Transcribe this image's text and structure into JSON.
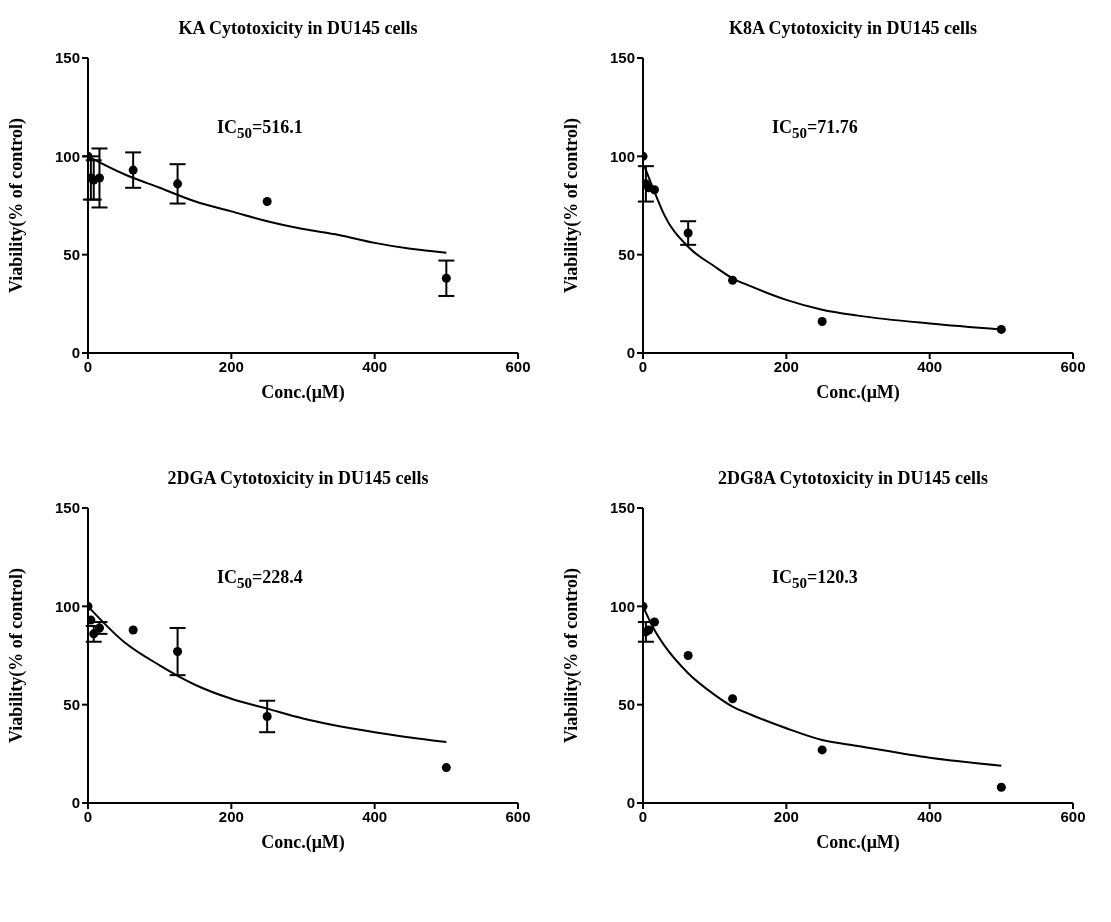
{
  "chart_data": [
    {
      "type": "scatter",
      "title": "KA Cytotoxicity in DU145 cells",
      "xlabel": "Conc.(μM)",
      "ylabel": "Viability(% of control)",
      "annotations": [
        "IC$_{50}$=516.1"
      ],
      "xlim": [
        0,
        600
      ],
      "xticks": [
        0,
        200,
        400,
        600
      ],
      "ylim": [
        0,
        150
      ],
      "yticks": [
        0,
        50,
        100,
        150
      ],
      "grid": false,
      "legend": false,
      "series": [
        {
          "color": "#000000",
          "marker": "circle",
          "x": [
            0,
            4,
            8,
            16,
            63,
            125,
            250,
            500
          ],
          "values": [
            100,
            89,
            88,
            89,
            93,
            86,
            77,
            38
          ],
          "errors": [
            null,
            11,
            10,
            15,
            9,
            10,
            null,
            9
          ]
        },
        {
          "type": "line",
          "marker": "none",
          "color": "#000000",
          "line_style": "solid",
          "x": [
            0,
            50,
            100,
            150,
            200,
            250,
            300,
            350,
            400,
            450,
            500
          ],
          "values": [
            100,
            91,
            84,
            77,
            72,
            67,
            63,
            60,
            56,
            53,
            51
          ]
        }
      ]
    },
    {
      "type": "scatter",
      "title": "K8A Cytotoxicity in DU145 cells",
      "xlabel": "Conc.(μM)",
      "ylabel": "Viability(% of control)",
      "annotations": [
        "IC$_{50}$=71.76"
      ],
      "xlim": [
        0,
        600
      ],
      "xticks": [
        0,
        200,
        400,
        600
      ],
      "ylim": [
        0,
        150
      ],
      "yticks": [
        0,
        50,
        100,
        150
      ],
      "grid": false,
      "legend": false,
      "series": [
        {
          "color": "#000000",
          "marker": "circle",
          "x": [
            0,
            4,
            8,
            16,
            63,
            125,
            250,
            500
          ],
          "values": [
            100,
            86,
            84,
            83,
            61,
            37,
            16,
            12
          ],
          "errors": [
            null,
            9,
            null,
            null,
            6,
            null,
            null,
            null
          ]
        },
        {
          "type": "line",
          "marker": "none",
          "color": "#000000",
          "line_style": "solid",
          "x": [
            2,
            16,
            30,
            63,
            100,
            125,
            150,
            200,
            250,
            300,
            400,
            500
          ],
          "values": [
            95,
            82,
            70,
            54,
            44,
            38,
            34,
            27,
            22,
            19,
            15,
            12
          ]
        }
      ]
    },
    {
      "type": "scatter",
      "title": "2DGA Cytotoxicity in DU145 cells",
      "xlabel": "Conc.(μM)",
      "ylabel": "Viability(% of control)",
      "annotations": [
        "IC$_{50}$=228.4"
      ],
      "xlim": [
        0,
        600
      ],
      "xticks": [
        0,
        200,
        400,
        600
      ],
      "ylim": [
        0,
        150
      ],
      "yticks": [
        0,
        50,
        100,
        150
      ],
      "grid": false,
      "legend": false,
      "series": [
        {
          "color": "#000000",
          "marker": "circle",
          "x": [
            0,
            4,
            8,
            16,
            63,
            125,
            250,
            500
          ],
          "values": [
            100,
            93,
            86,
            89,
            88,
            77,
            44,
            18
          ],
          "errors": [
            null,
            null,
            4,
            3,
            null,
            12,
            8,
            null
          ]
        },
        {
          "type": "line",
          "marker": "none",
          "color": "#000000",
          "line_style": "solid",
          "x": [
            0,
            50,
            100,
            150,
            200,
            250,
            300,
            400,
            500
          ],
          "values": [
            100,
            82,
            70,
            60,
            53,
            48,
            43,
            36,
            31
          ]
        }
      ]
    },
    {
      "type": "scatter",
      "title": "2DG8A Cytotoxicity in DU145 cells",
      "xlabel": "Conc.(μM)",
      "ylabel": "Viability(% of control)",
      "annotations": [
        "IC$_{50}$=120.3"
      ],
      "xlim": [
        0,
        600
      ],
      "xticks": [
        0,
        200,
        400,
        600
      ],
      "ylim": [
        0,
        150
      ],
      "yticks": [
        0,
        50,
        100,
        150
      ],
      "grid": false,
      "legend": false,
      "series": [
        {
          "color": "#000000",
          "marker": "circle",
          "x": [
            0,
            4,
            8,
            16,
            63,
            125,
            250,
            500
          ],
          "values": [
            100,
            87,
            88,
            92,
            75,
            53,
            27,
            8
          ],
          "errors": [
            null,
            5,
            null,
            null,
            null,
            null,
            null,
            null
          ]
        },
        {
          "type": "line",
          "marker": "none",
          "color": "#000000",
          "line_style": "solid",
          "x": [
            0,
            16,
            30,
            63,
            100,
            125,
            150,
            200,
            250,
            300,
            400,
            500
          ],
          "values": [
            100,
            88,
            80,
            66,
            55,
            49,
            45,
            38,
            32,
            29,
            23,
            19
          ]
        }
      ]
    }
  ]
}
